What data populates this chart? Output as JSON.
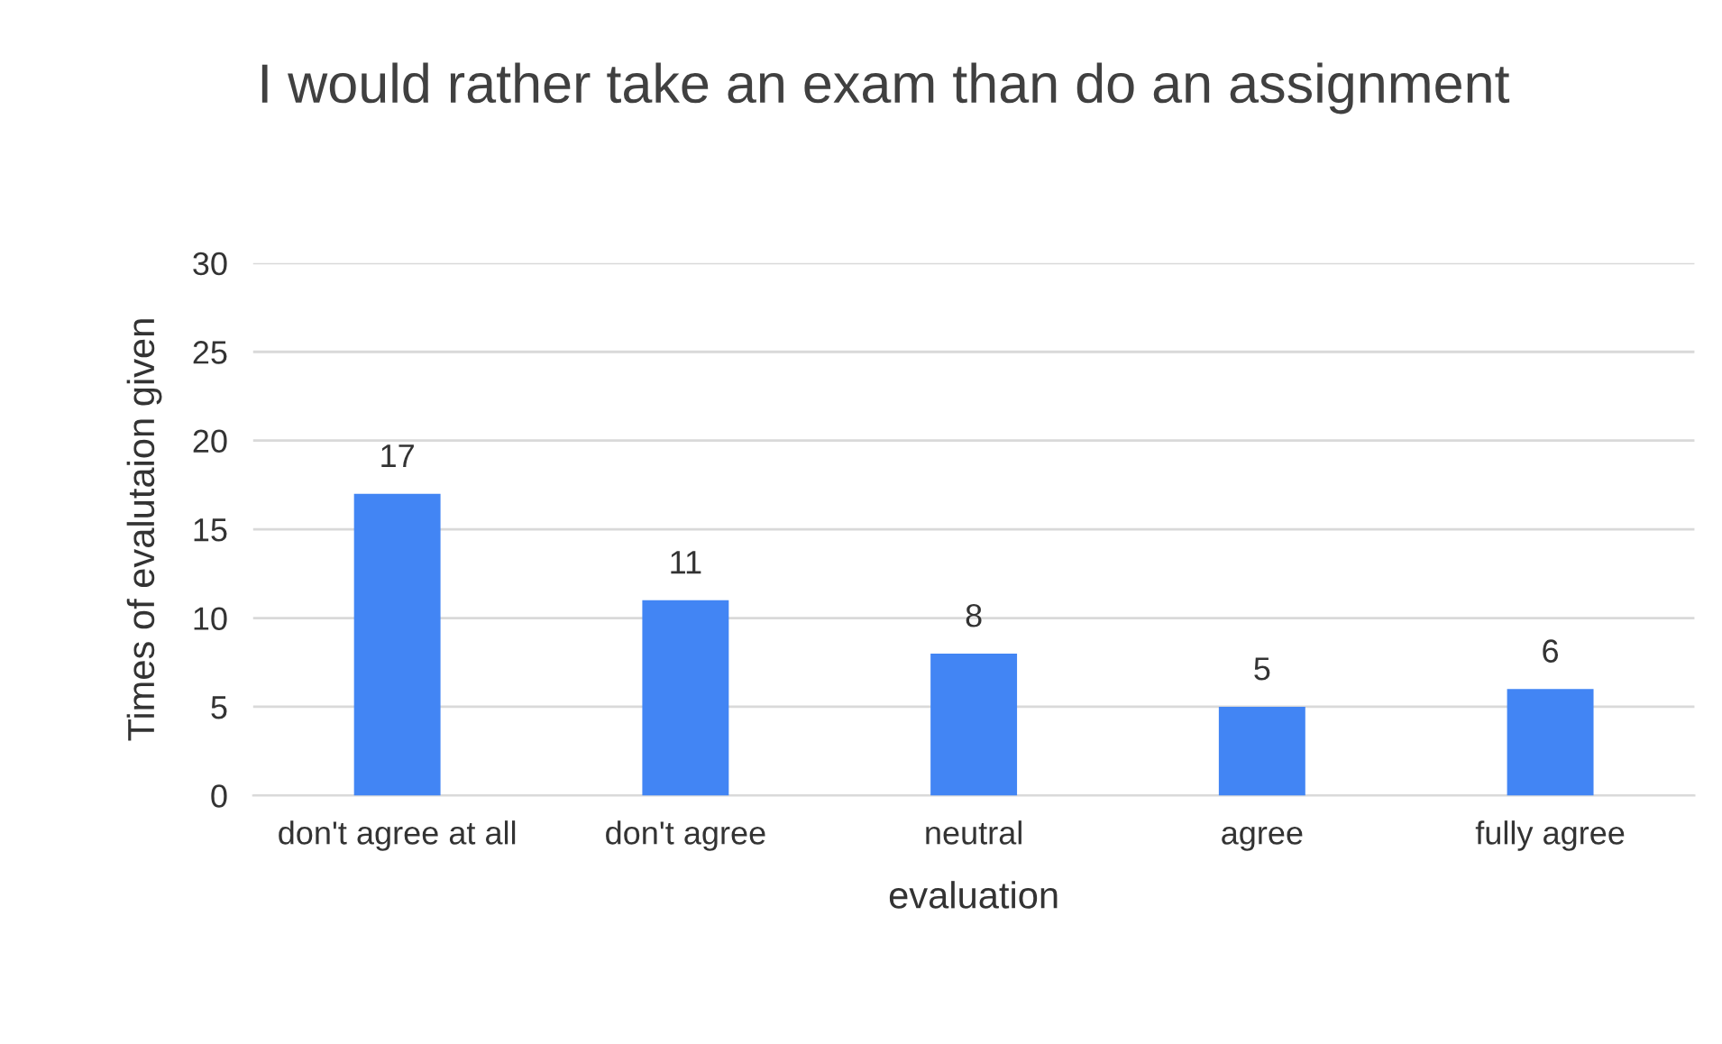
{
  "chart_data": {
    "type": "bar",
    "title": "I would rather take an exam than do an assignment",
    "xlabel": "evaluation",
    "ylabel": "Times of evalutaion given",
    "categories": [
      "don't agree at all",
      "don't agree",
      "neutral",
      "agree",
      "fully agree"
    ],
    "values": [
      17,
      11,
      8,
      5,
      6
    ],
    "color": "#4285f4",
    "ylim": [
      0,
      30
    ],
    "yticks": [
      0,
      5,
      10,
      15,
      20,
      25,
      30
    ],
    "grid": "y",
    "data_labels": true,
    "legend": false
  }
}
